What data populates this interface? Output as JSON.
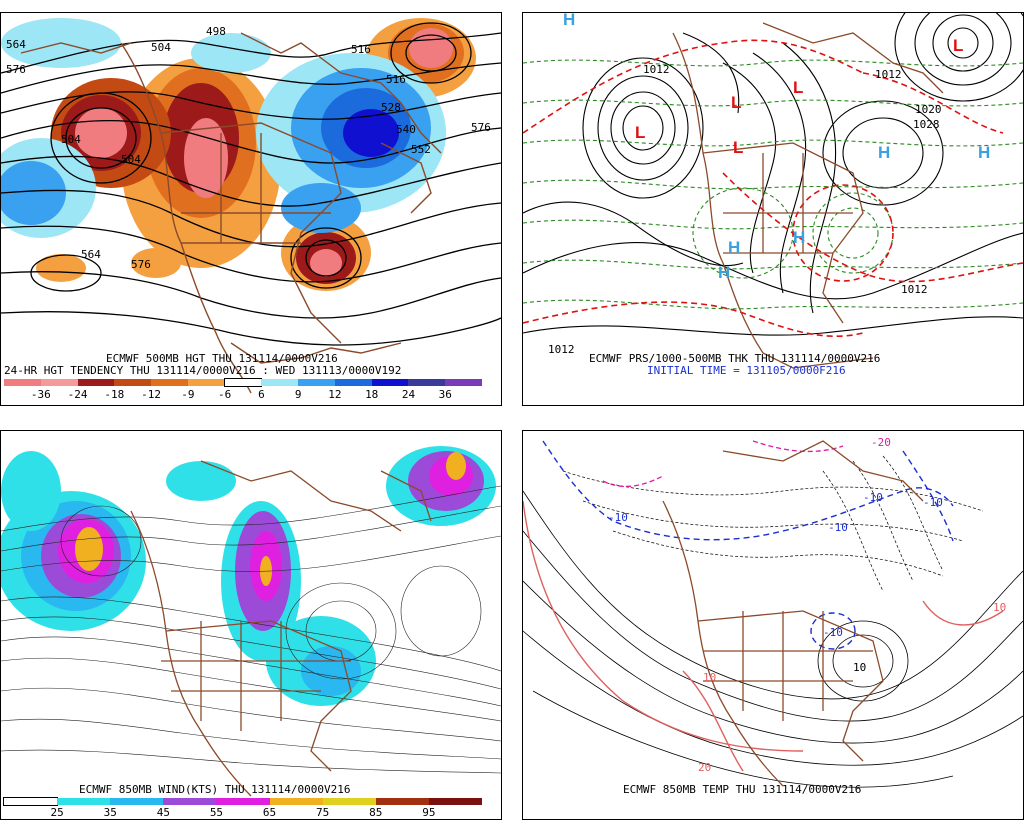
{
  "panels": [
    {
      "id": "hgt500",
      "caption_1": "ECMWF 500MB HGT THU 131114/0000V216",
      "caption_2": "24-HR HGT TENDENCY THU 131114/0000V216 : WED 131113/0000V192",
      "contour_labels": [
        "564",
        "504",
        "498",
        "516",
        "504",
        "528",
        "540",
        "552",
        "576",
        "576",
        "564",
        "576",
        "516",
        "504"
      ],
      "colorbar": {
        "ticks": [
          "-36",
          "-24",
          "-18",
          "-12",
          "-9",
          "-6",
          "6",
          "9",
          "12",
          "18",
          "24",
          "36"
        ],
        "colors": [
          "#f07c80",
          "#f59a9a",
          "#9c1a1a",
          "#c44a14",
          "#e07020",
          "#f5a040",
          "#ffffff",
          "#9de6f5",
          "#3aa0f0",
          "#1b6bdc",
          "#1010d0",
          "#3a3a9a",
          "#7b3ab8"
        ]
      }
    },
    {
      "id": "prs_thk",
      "caption_1": "ECMWF PRS/1000-500MB THK THU 131114/0000V216",
      "caption_2": "INITIAL TIME = 131105/0000F216",
      "pressure_labels": [
        "1012",
        "1020",
        "1028",
        "1012",
        "1012",
        "1012"
      ],
      "low_symbol": "L",
      "high_symbol": "H"
    },
    {
      "id": "wind850",
      "caption_1": "ECMWF 850MB WIND(KTS) THU 131114/0000V216",
      "colorbar": {
        "ticks": [
          "25",
          "35",
          "45",
          "55",
          "65",
          "75",
          "85",
          "95"
        ],
        "colors": [
          "#ffffff",
          "#30e0e8",
          "#2ab8f0",
          "#9b4bd8",
          "#e020e0",
          "#f0b020",
          "#e0d020",
          "#a03010",
          "#7a1010"
        ]
      }
    },
    {
      "id": "temp850",
      "caption_1": "ECMWF 850MB TEMP THU 131114/0000V216",
      "isotherm_labels": [
        "-10",
        "-10",
        "-10",
        "-10",
        "-10",
        "10",
        "10",
        "-20",
        "20",
        "10"
      ]
    }
  ],
  "colors": {
    "coast": "#8b4a2a",
    "warm_1": "#9c1a1a",
    "warm_2": "#e07020",
    "warm_3": "#f07c80",
    "cold_1": "#1010d0",
    "cold_2": "#3aa0f0",
    "cold_3": "#9de6f5",
    "low_red": "#e01010",
    "high_blue": "#3aa0e0",
    "thickness_green": "#2a8a20"
  }
}
